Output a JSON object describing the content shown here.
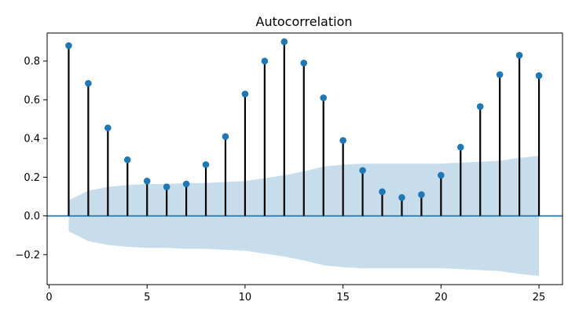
{
  "chart_data": {
    "type": "stem",
    "title": "Autocorrelation",
    "xlabel": "",
    "ylabel": "",
    "xlim": [
      -0.1,
      26.2
    ],
    "ylim": [
      -0.355,
      0.945
    ],
    "x_ticks": [
      0,
      5,
      10,
      15,
      20,
      25
    ],
    "x_tick_labels": [
      "0",
      "5",
      "10",
      "15",
      "20",
      "25"
    ],
    "y_ticks": [
      -0.2,
      0.0,
      0.2,
      0.4,
      0.6,
      0.8
    ],
    "y_tick_labels": [
      "−0.2",
      "0.0",
      "0.2",
      "0.4",
      "0.6",
      "0.8"
    ],
    "grid": false,
    "lags": [
      1,
      2,
      3,
      4,
      5,
      6,
      7,
      8,
      9,
      10,
      11,
      12,
      13,
      14,
      15,
      16,
      17,
      18,
      19,
      20,
      21,
      22,
      23,
      24,
      25
    ],
    "values": [
      0.88,
      0.685,
      0.455,
      0.29,
      0.18,
      0.15,
      0.165,
      0.265,
      0.41,
      0.63,
      0.8,
      0.9,
      0.79,
      0.61,
      0.39,
      0.235,
      0.125,
      0.095,
      0.11,
      0.21,
      0.355,
      0.565,
      0.73,
      0.83,
      0.725
    ],
    "confidence_band": {
      "upper": [
        0.08,
        0.13,
        0.15,
        0.16,
        0.165,
        0.165,
        0.17,
        0.17,
        0.175,
        0.18,
        0.195,
        0.21,
        0.23,
        0.255,
        0.265,
        0.27,
        0.27,
        0.27,
        0.27,
        0.27,
        0.275,
        0.28,
        0.285,
        0.3,
        0.31
      ],
      "lower": [
        -0.08,
        -0.13,
        -0.15,
        -0.16,
        -0.165,
        -0.165,
        -0.17,
        -0.17,
        -0.175,
        -0.18,
        -0.195,
        -0.21,
        -0.23,
        -0.255,
        -0.265,
        -0.27,
        -0.27,
        -0.27,
        -0.27,
        -0.27,
        -0.275,
        -0.28,
        -0.285,
        -0.3,
        -0.31
      ]
    },
    "colors": {
      "marker": "#1f77b4",
      "stem": "#000000",
      "zero_line": "#1f77b4",
      "band": "#1f77b4"
    }
  }
}
